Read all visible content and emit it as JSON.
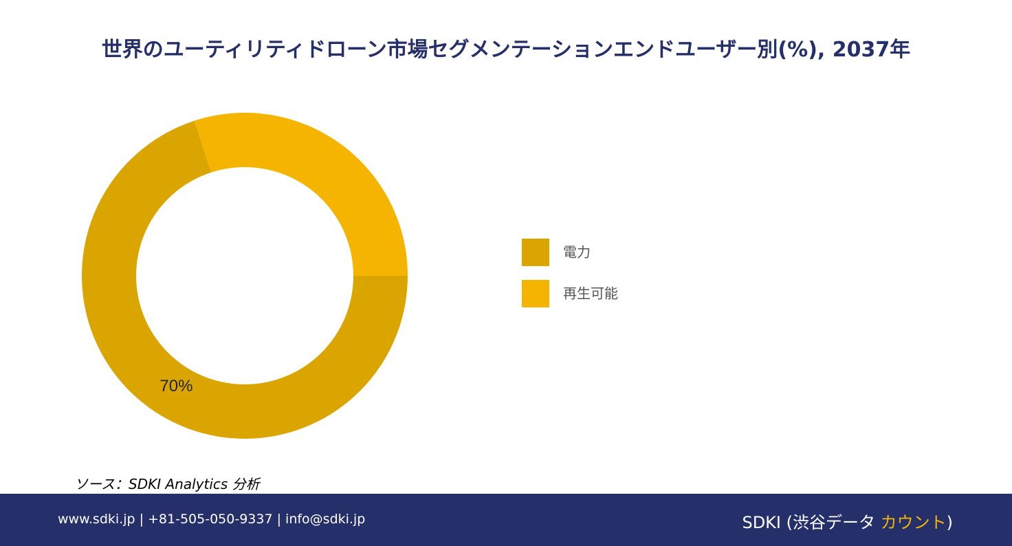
{
  "chart_data": {
    "type": "donut",
    "title": "世界のユーティリティドローン市場セグメンテーションエンドユーザー別(%), 2037年",
    "categories": [
      "電力",
      "再生可能"
    ],
    "values": [
      70,
      30
    ],
    "value_labels": [
      "70%",
      null
    ],
    "colors": [
      "#dba500",
      "#f4b400"
    ],
    "start_angle": 90,
    "legend": "right"
  },
  "source": "ソース：SDKI Analytics 分析",
  "footer": {
    "contact": "www.sdki.jp | +81-505-050-9337 | info@sdki.jp",
    "brand_start": "SDKI (渋谷データ ",
    "brand_accent": "カウント",
    "brand_end": ")"
  }
}
